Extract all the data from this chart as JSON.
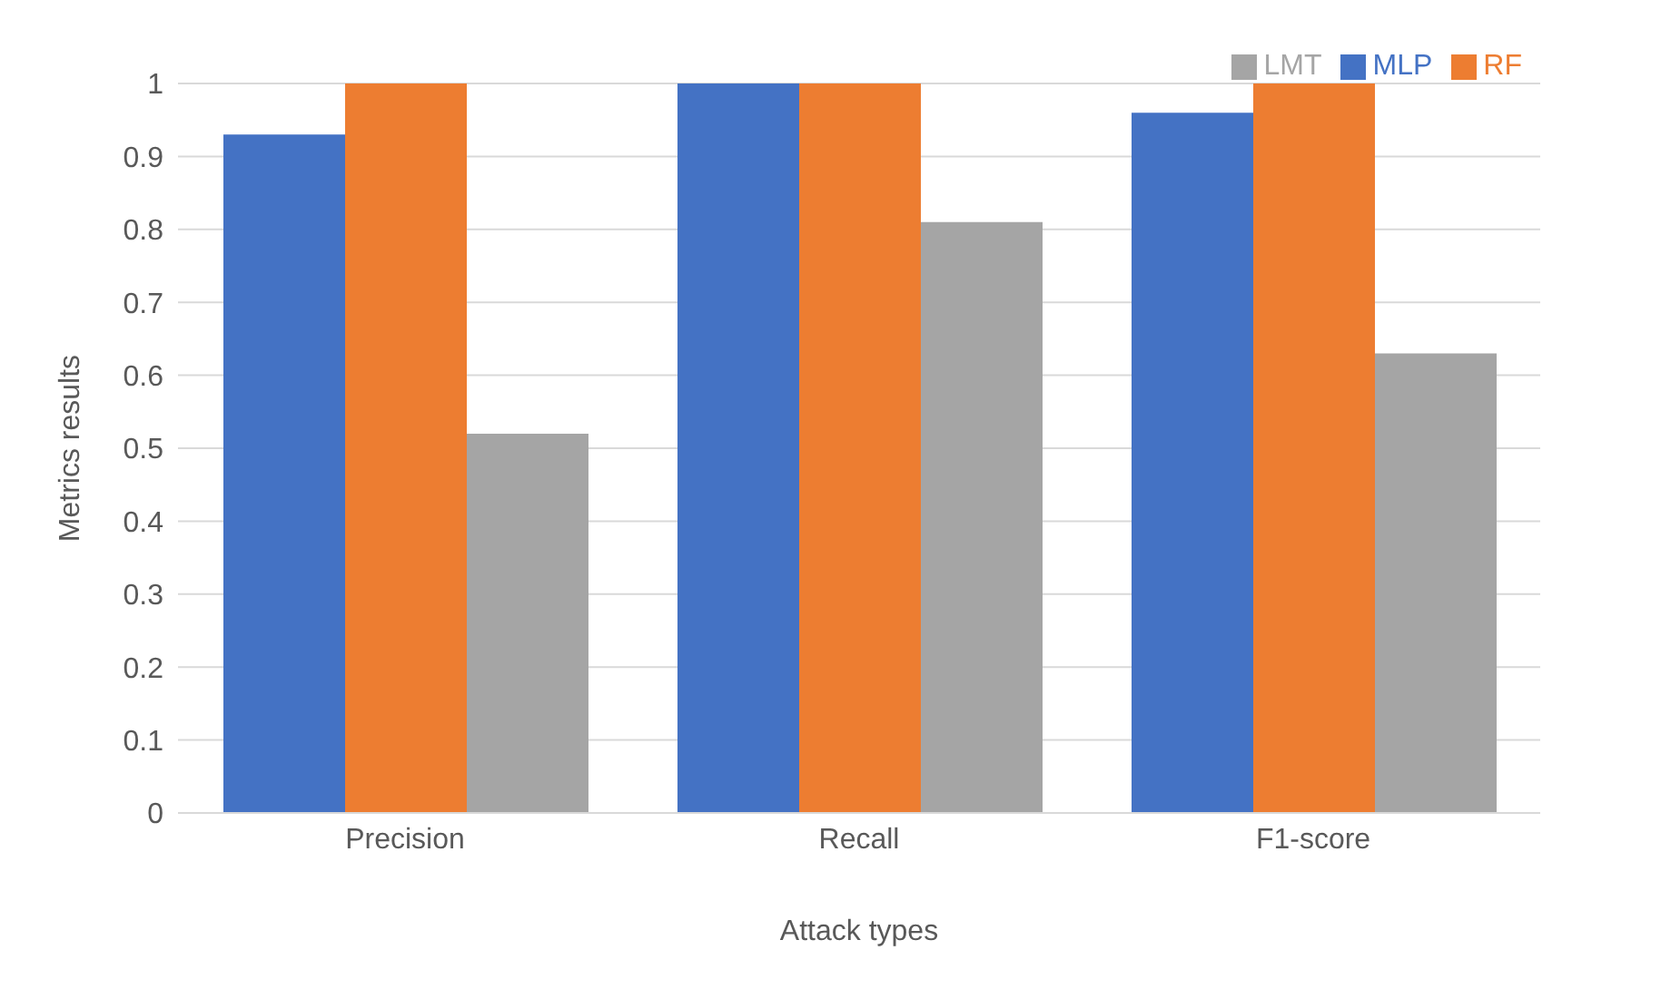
{
  "chart_data": {
    "type": "bar",
    "xlabel": "Attack types",
    "ylabel": "Metrics results",
    "categories": [
      "Precision",
      "Recall",
      "F1-score"
    ],
    "series": [
      {
        "name": "MLP",
        "color": "#4472c4",
        "values": [
          0.93,
          1,
          0.96
        ]
      },
      {
        "name": "RF",
        "color": "#ed7d31",
        "values": [
          1,
          1,
          1
        ]
      },
      {
        "name": "LMT",
        "color": "#a5a5a5",
        "values": [
          0.52,
          0.81,
          0.63
        ]
      }
    ],
    "ylim": [
      0,
      1
    ],
    "yticks": [
      0,
      0.1,
      0.2,
      0.3,
      0.4,
      0.5,
      0.6,
      0.7,
      0.8,
      0.9,
      1
    ],
    "grid": "y",
    "legend": "top right"
  }
}
